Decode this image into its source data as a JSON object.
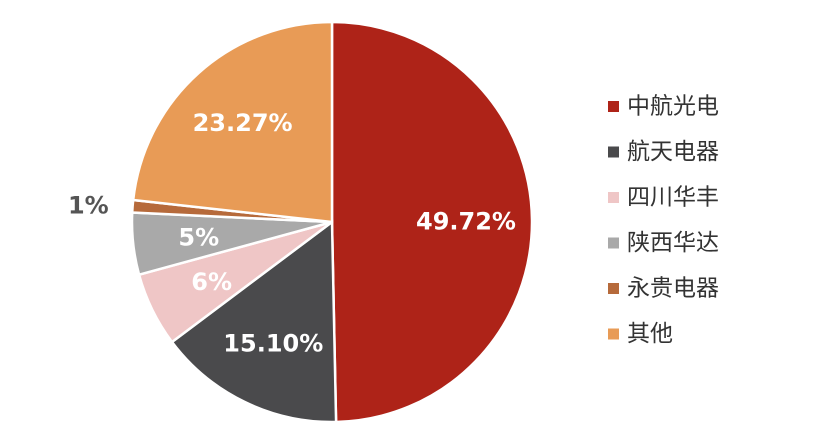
{
  "chart_data": {
    "type": "pie",
    "categories": [
      "中航光电",
      "航天电器",
      "四川华丰",
      "陕西华达",
      "永贵电器",
      "其他"
    ],
    "values": [
      49.72,
      15.1,
      6,
      5,
      1,
      23.27
    ],
    "value_labels": [
      "49.72%",
      "15.10%",
      "6%",
      "5%",
      "1%",
      "23.27%"
    ],
    "colors": [
      "#ae2318",
      "#4a4a4c",
      "#efc6c6",
      "#a9a9a9",
      "#b66a3b",
      "#e89b56"
    ],
    "legend": "right"
  }
}
